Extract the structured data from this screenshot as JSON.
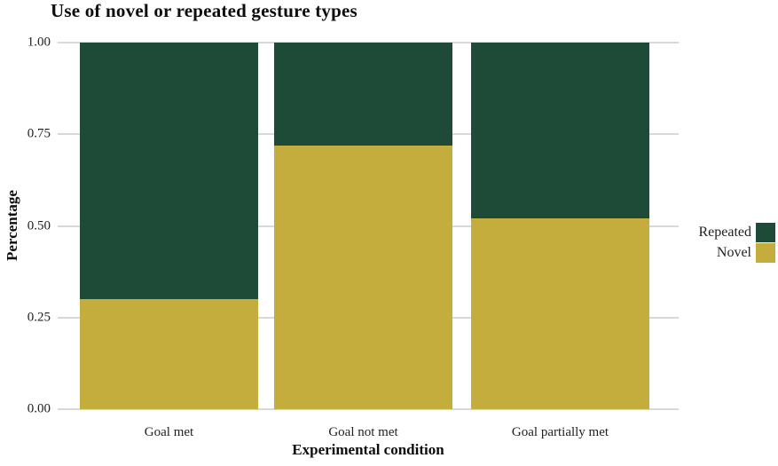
{
  "colors": {
    "repeated": "#1d4b38",
    "novel": "#c4ac3d",
    "gridline": "#d8d8d8",
    "text": "#1f1f1f"
  },
  "chart_data": {
    "type": "bar",
    "stacked": true,
    "title": "Use of novel or repeated gesture types",
    "xlabel": "Experimental condition",
    "ylabel": "Percentage",
    "categories": [
      "Goal met",
      "Goal not met",
      "Goal partially met"
    ],
    "series": [
      {
        "name": "Novel",
        "color": "#c4ac3d",
        "values": [
          0.3,
          0.72,
          0.52
        ]
      },
      {
        "name": "Repeated",
        "color": "#1d4b38",
        "values": [
          0.7,
          0.28,
          0.48
        ]
      }
    ],
    "ylim": [
      0,
      1
    ],
    "yticks": [
      0.0,
      0.25,
      0.5,
      0.75,
      1.0
    ],
    "ytick_labels": [
      "0.00",
      "0.25",
      "0.50",
      "0.75",
      "1.00"
    ],
    "grid": true,
    "legend": {
      "position": "right",
      "entries": [
        "Repeated",
        "Novel"
      ]
    }
  }
}
